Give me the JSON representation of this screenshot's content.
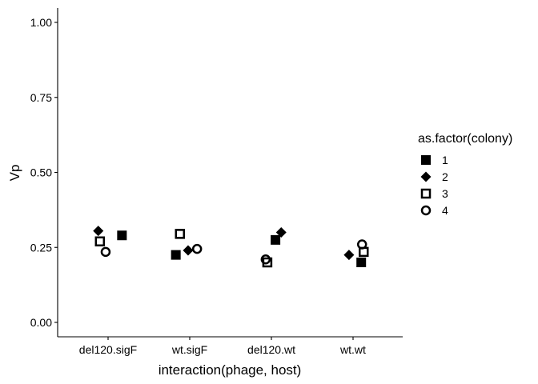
{
  "chart_data": {
    "type": "scatter",
    "categories": [
      "del120.sigF",
      "wt.sigF",
      "del120.wt",
      "wt.wt"
    ],
    "xlabel": "interaction(phage, host)",
    "ylabel": "Vp",
    "ylim": [
      0,
      1
    ],
    "yticks": [
      "0.00",
      "0.25",
      "0.50",
      "0.75",
      "1.00"
    ],
    "grid": false,
    "legend": {
      "title": "as.factor(colony)",
      "placement": "right",
      "entries": [
        {
          "label": "1",
          "shape": "filled-square"
        },
        {
          "label": "2",
          "shape": "filled-diamond"
        },
        {
          "label": "3",
          "shape": "open-square"
        },
        {
          "label": "4",
          "shape": "open-circle"
        }
      ]
    },
    "series": [
      {
        "name": "1",
        "shape": "filled-square",
        "jitter": [
          0.17,
          -0.17,
          0.05,
          0.1
        ],
        "values": [
          0.29,
          0.225,
          0.275,
          0.2
        ]
      },
      {
        "name": "2",
        "shape": "filled-diamond",
        "jitter": [
          -0.12,
          -0.02,
          0.12,
          -0.05
        ],
        "values": [
          0.305,
          0.24,
          0.3,
          0.225
        ]
      },
      {
        "name": "3",
        "shape": "open-square",
        "jitter": [
          -0.1,
          -0.12,
          -0.05,
          0.13
        ],
        "values": [
          0.27,
          0.295,
          0.2,
          0.235
        ]
      },
      {
        "name": "4",
        "shape": "open-circle",
        "jitter": [
          -0.03,
          0.09,
          -0.07,
          0.11
        ],
        "values": [
          0.235,
          0.245,
          0.21,
          0.26
        ]
      }
    ],
    "color": "#000000"
  }
}
